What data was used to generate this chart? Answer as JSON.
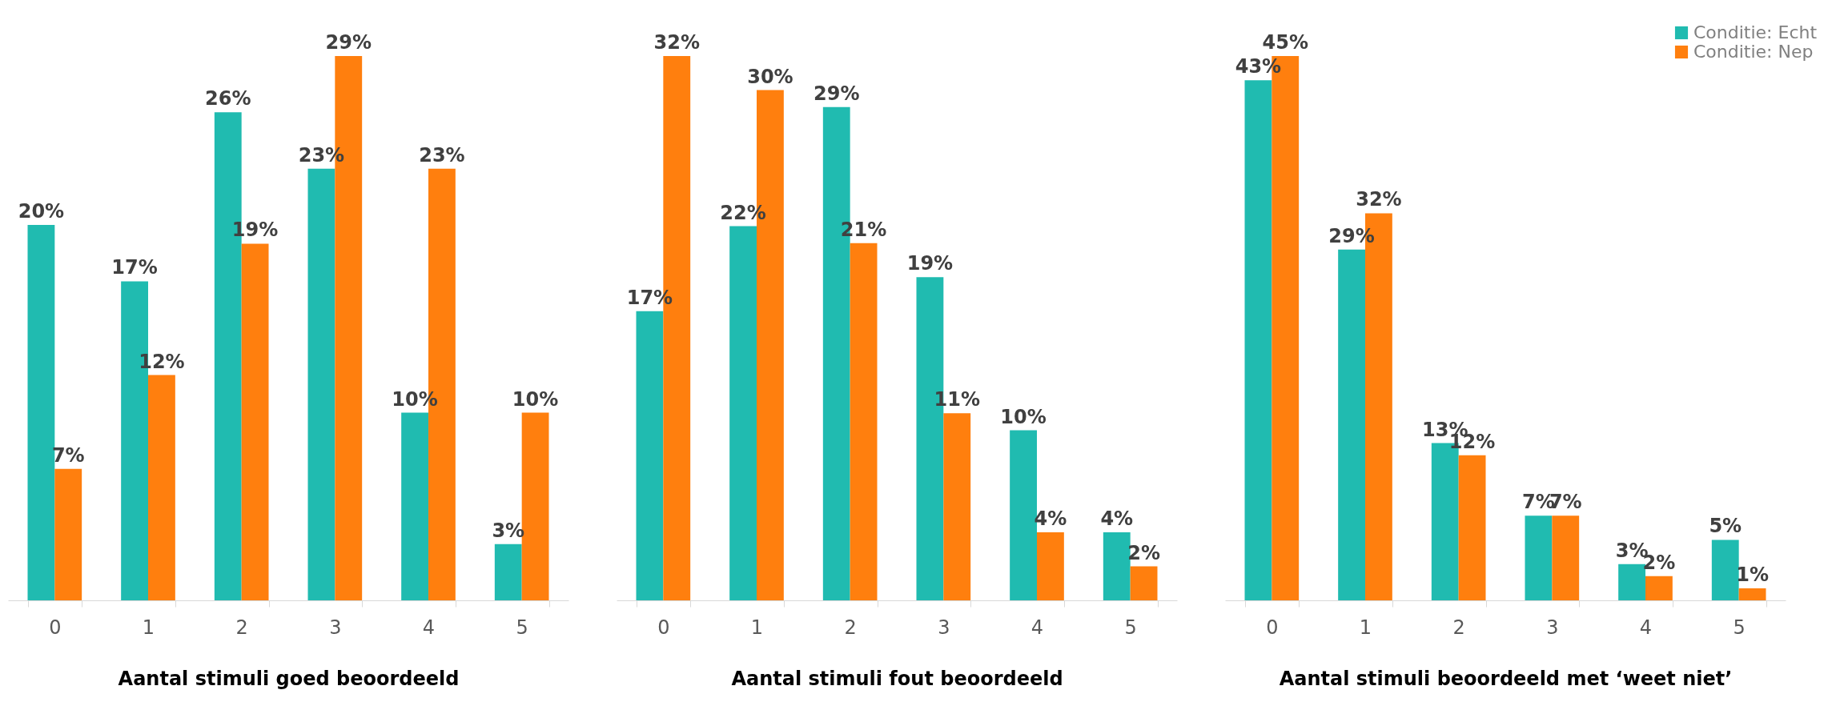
{
  "chart_data": [
    {
      "type": "bar",
      "categories": [
        "0",
        "1",
        "2",
        "3",
        "4",
        "5"
      ],
      "xlabel": "Aantal stimuli goed beoordeeld",
      "series": [
        {
          "color": "#20bbb0",
          "values": [
            20,
            17,
            26,
            23,
            10,
            3
          ],
          "value_labels": [
            "20%",
            "17%",
            "26%",
            "23%",
            "10%",
            "3%"
          ]
        },
        {
          "color": "#ff7f0e",
          "values": [
            7,
            12,
            19,
            29,
            23,
            10
          ],
          "value_labels": [
            "7%",
            "12%",
            "19%",
            "29%",
            "23%",
            "10%"
          ]
        }
      ]
    },
    {
      "type": "bar",
      "categories": [
        "0",
        "1",
        "2",
        "3",
        "4",
        "5"
      ],
      "xlabel": "Aantal stimuli fout beoordeeld",
      "series": [
        {
          "color": "#20bbb0",
          "values": [
            17,
            22,
            29,
            19,
            10,
            4
          ],
          "value_labels": [
            "17%",
            "22%",
            "29%",
            "19%",
            "10%",
            "4%"
          ]
        },
        {
          "color": "#ff7f0e",
          "values": [
            32,
            30,
            21,
            11,
            4,
            2
          ],
          "value_labels": [
            "32%",
            "30%",
            "21%",
            "11%",
            "4%",
            "2%"
          ]
        }
      ]
    },
    {
      "type": "bar",
      "categories": [
        "0",
        "1",
        "2",
        "3",
        "4",
        "5"
      ],
      "xlabel": "Aantal stimuli beoordeeld met ‘weet niet’",
      "legend": "top right",
      "series": [
        {
          "name": "Conditie: Echt",
          "color": "#20bbb0",
          "values": [
            43,
            29,
            13,
            7,
            3,
            5
          ],
          "value_labels": [
            "43%",
            "29%",
            "13%",
            "7%",
            "3%",
            "5%"
          ]
        },
        {
          "name": "Conditie: Nep",
          "color": "#ff7f0e",
          "values": [
            45,
            32,
            12,
            7,
            2,
            1
          ],
          "value_labels": [
            "45%",
            "32%",
            "12%",
            "7%",
            "2%",
            "1%"
          ]
        }
      ]
    }
  ]
}
